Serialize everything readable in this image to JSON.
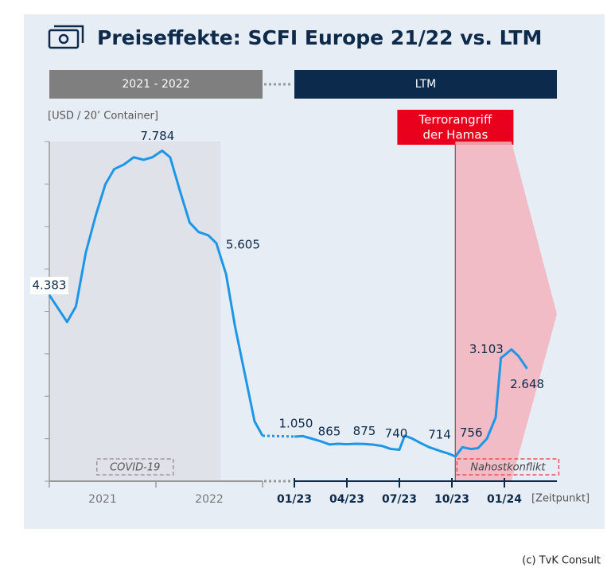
{
  "title": "Preiseffekte: SCFI Europe 21/22 vs. LTM",
  "unit_label": "[USD / 20’ Container]",
  "x_unit_label": "[Zeitpunkt]",
  "credit": "(c) TvK Consult",
  "chart_data": [
    {
      "type": "line",
      "header": "2021 - 2022",
      "color": "#1e96e8",
      "xlim": [
        0,
        24
      ],
      "xticks": [
        {
          "value": 6,
          "label": "2021"
        },
        {
          "value": 18,
          "label": "2022"
        }
      ],
      "ylim": [
        0,
        8000
      ],
      "yticks": [
        0,
        1000,
        2000,
        3000,
        4000,
        5000,
        6000,
        7000,
        8000
      ],
      "x": [
        0,
        2.0,
        3.0,
        4.1,
        5.2,
        6.3,
        7.3,
        8.4,
        9.5,
        10.6,
        11.6,
        12.7,
        13.6,
        14.7,
        15.8,
        16.8,
        17.9,
        18.8,
        19.9,
        20.9,
        22.0,
        23.1,
        24.0
      ],
      "values": [
        4383,
        3750,
        4120,
        5380,
        6240,
        6990,
        7350,
        7460,
        7630,
        7570,
        7630,
        7784,
        7630,
        6840,
        6090,
        5870,
        5790,
        5605,
        4870,
        3650,
        2530,
        1410,
        1070
      ],
      "value_labels": [
        "4.383",
        null,
        null,
        null,
        null,
        null,
        null,
        null,
        null,
        null,
        null,
        "7.784",
        null,
        null,
        null,
        null,
        null,
        "5.605",
        null,
        null,
        null,
        null,
        null
      ],
      "annotations": [
        {
          "text": "COVID-19",
          "x_range": [
            0,
            19.3
          ]
        }
      ]
    },
    {
      "type": "line",
      "header": "LTM",
      "color": "#1e96e8",
      "xlim": [
        0,
        15
      ],
      "xticks": [
        {
          "value": 0,
          "label": "01/23"
        },
        {
          "value": 3,
          "label": "04/23"
        },
        {
          "value": 6,
          "label": "07/23"
        },
        {
          "value": 9,
          "label": "10/23"
        },
        {
          "value": 12,
          "label": "01/24"
        }
      ],
      "ylim": [
        0,
        8000
      ],
      "x": [
        0,
        0.5,
        1,
        1.5,
        2,
        2.5,
        3,
        3.5,
        4,
        4.5,
        5,
        5.5,
        6,
        6.3,
        6.7,
        7.2,
        7.7,
        8.3,
        8.8,
        9.2,
        9.6,
        10.1,
        10.5,
        11,
        11.5,
        11.8,
        12.1,
        12.4,
        12.8,
        13.3
      ],
      "values": [
        1050,
        1060,
        1000,
        940,
        865,
        880,
        870,
        880,
        875,
        860,
        830,
        760,
        740,
        1070,
        1010,
        900,
        800,
        714,
        650,
        580,
        800,
        756,
        780,
        1000,
        1500,
        2900,
        3000,
        3103,
        2950,
        2648
      ],
      "value_labels": [
        "1.050",
        null,
        null,
        null,
        "865",
        null,
        null,
        null,
        "875",
        null,
        null,
        null,
        "740",
        null,
        null,
        null,
        null,
        "714",
        null,
        null,
        null,
        "756",
        null,
        null,
        null,
        null,
        null,
        "3.103",
        null,
        "2.648"
      ],
      "annotations": [
        {
          "text_lines": [
            "Terrorangriff",
            "der Hamas"
          ],
          "x": 9.2
        },
        {
          "text": "Nahostkonflikt",
          "x_range": [
            9.2,
            12.4
          ]
        }
      ]
    }
  ]
}
